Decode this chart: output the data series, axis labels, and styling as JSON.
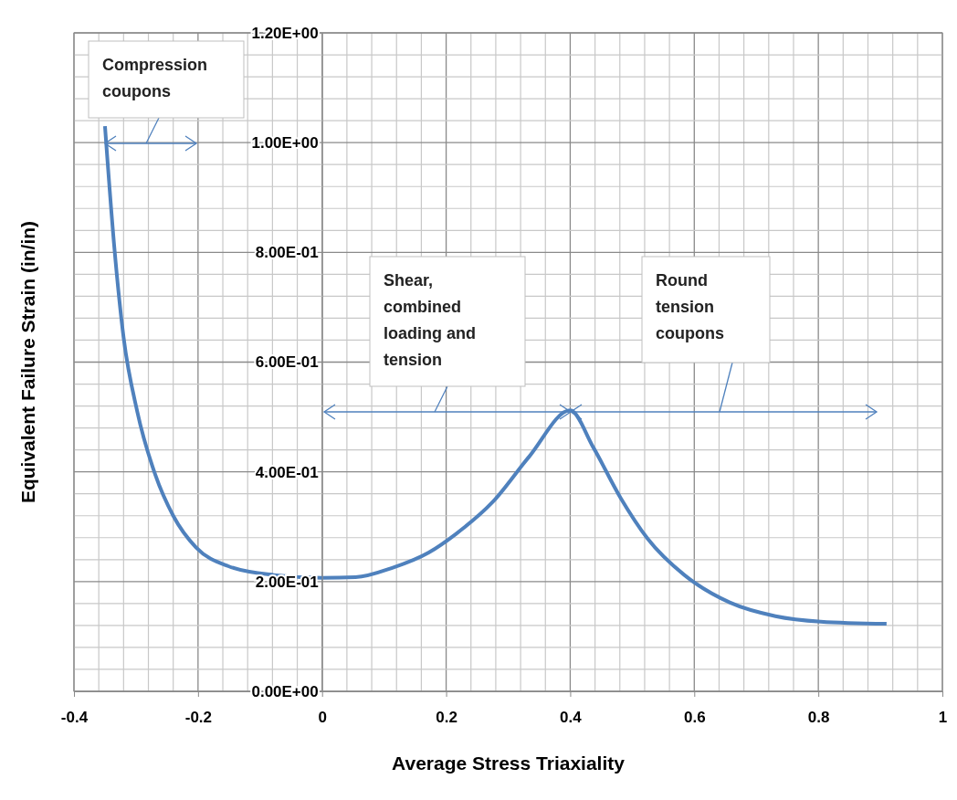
{
  "chart_data": {
    "type": "line",
    "xlabel": "Average Stress Triaxiality",
    "ylabel": "Equivalent Failure Strain (in/in)",
    "xlim": [
      -0.4,
      1
    ],
    "ylim": [
      0,
      1.2
    ],
    "xticks": [
      -0.4,
      {
        "value": -0.36,
        "label": null
      },
      {
        "value": -0.32,
        "label": null
      },
      {
        "value": -0.28,
        "label": null
      },
      {
        "value": -0.24,
        "label": null
      },
      -0.2,
      {
        "value": -0.16,
        "label": null
      },
      {
        "value": -0.12,
        "label": null
      },
      {
        "value": -0.08,
        "label": null
      },
      {
        "value": -0.04,
        "label": null
      },
      0,
      {
        "value": 0.04,
        "label": null
      },
      {
        "value": 0.08,
        "label": null
      },
      {
        "value": 0.12,
        "label": null
      },
      {
        "value": 0.16,
        "label": null
      },
      0.2,
      {
        "value": 0.24,
        "label": null
      },
      {
        "value": 0.28,
        "label": null
      },
      {
        "value": 0.32,
        "label": null
      },
      {
        "value": 0.36,
        "label": null
      },
      0.4,
      {
        "value": 0.44,
        "label": null
      },
      {
        "value": 0.48,
        "label": null
      },
      {
        "value": 0.52,
        "label": null
      },
      {
        "value": 0.56,
        "label": null
      },
      0.6,
      {
        "value": 0.64,
        "label": null
      },
      {
        "value": 0.68,
        "label": null
      },
      {
        "value": 0.72,
        "label": null
      },
      {
        "value": 0.76,
        "label": null
      },
      0.8,
      {
        "value": 0.84,
        "label": null
      },
      {
        "value": 0.88,
        "label": null
      },
      {
        "value": 0.92,
        "label": null
      },
      {
        "value": 0.96,
        "label": null
      },
      1
    ],
    "yticks": [
      {
        "value": 0,
        "label": "0.00E+00"
      },
      {
        "value": 0.04,
        "label": null
      },
      {
        "value": 0.08,
        "label": null
      },
      {
        "value": 0.12,
        "label": null
      },
      {
        "value": 0.16,
        "label": null
      },
      {
        "value": 0.2,
        "label": "2.00E-01"
      },
      {
        "value": 0.24,
        "label": null
      },
      {
        "value": 0.28,
        "label": null
      },
      {
        "value": 0.32,
        "label": null
      },
      {
        "value": 0.36,
        "label": null
      },
      {
        "value": 0.4,
        "label": "4.00E-01"
      },
      {
        "value": 0.44,
        "label": null
      },
      {
        "value": 0.48,
        "label": null
      },
      {
        "value": 0.52,
        "label": null
      },
      {
        "value": 0.56,
        "label": null
      },
      {
        "value": 0.6,
        "label": "6.00E-01"
      },
      {
        "value": 0.64,
        "label": null
      },
      {
        "value": 0.68,
        "label": null
      },
      {
        "value": 0.72,
        "label": null
      },
      {
        "value": 0.76,
        "label": null
      },
      {
        "value": 0.8,
        "label": "8.00E-01"
      },
      {
        "value": 0.84,
        "label": null
      },
      {
        "value": 0.88,
        "label": null
      },
      {
        "value": 0.92,
        "label": null
      },
      {
        "value": 0.96,
        "label": null
      },
      {
        "value": 1,
        "label": "1.00E+00"
      },
      {
        "value": 1.04,
        "label": null
      },
      {
        "value": 1.08,
        "label": null
      },
      {
        "value": 1.12,
        "label": null
      },
      {
        "value": 1.16,
        "label": null
      },
      {
        "value": 1.2,
        "label": "1.20E+00"
      }
    ],
    "grid": true,
    "marker": "none",
    "series": [
      {
        "color": "#4f81bd",
        "x": [
          -0.35,
          -0.335,
          -0.32,
          -0.298,
          -0.269,
          -0.24,
          -0.203,
          -0.151,
          -0.078,
          0,
          0.054,
          0.113,
          0.172,
          0.216,
          0.275,
          0.334,
          0.4,
          0.437,
          0.481,
          0.525,
          0.584,
          0.657,
          0.731,
          0.804,
          0.91
        ],
        "values": [
          1.03,
          0.81,
          0.645,
          0.51,
          0.395,
          0.32,
          0.262,
          0.228,
          0.212,
          0.207,
          0.208,
          0.225,
          0.253,
          0.287,
          0.345,
          0.428,
          0.512,
          0.445,
          0.353,
          0.278,
          0.212,
          0.162,
          0.137,
          0.127,
          0.123
        ]
      }
    ],
    "annotations": [
      "Compression\ncoupons",
      "Shear,\ncombined\nloading and\ntension",
      "Round\ntension\ncoupons"
    ]
  }
}
